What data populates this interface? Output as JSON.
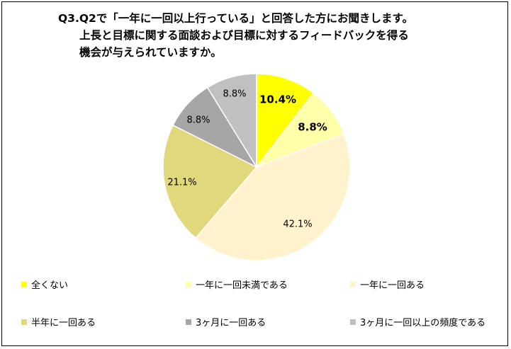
{
  "title": {
    "line1": "Q3.Q2で「一年に一回以上行っている」と回答した方にお聞きします。",
    "line2": "上長と目標に関する面談および目標に対するフィードバックを得る",
    "line3": "機会が与えられていますか。"
  },
  "chart_data": {
    "type": "pie",
    "start_angle": "12 o'clock, clockwise",
    "slices": [
      {
        "label": "全くない",
        "value": 10.4,
        "display": "10.4%",
        "color": "#FFFF00",
        "bold": true
      },
      {
        "label": "一年に一回未満である",
        "value": 8.8,
        "display": "8.8%",
        "color": "#FFFFAA",
        "bold": true
      },
      {
        "label": "一年に一回ある",
        "value": 42.1,
        "display": "42.1%",
        "color": "#FFF2CC",
        "bold": false
      },
      {
        "label": "半年に一回ある",
        "value": 21.1,
        "display": "21.1%",
        "color": "#E0D87A",
        "bold": false
      },
      {
        "label": "3ヶ月に一回ある",
        "value": 8.8,
        "display": "8.8%",
        "color": "#A6A6A6",
        "bold": false
      },
      {
        "label": "3ヶ月に一回以上の頻度である",
        "value": 8.8,
        "display": "8.8%",
        "color": "#C0C0C0",
        "bold": false
      }
    ],
    "legend_position": "bottom"
  }
}
